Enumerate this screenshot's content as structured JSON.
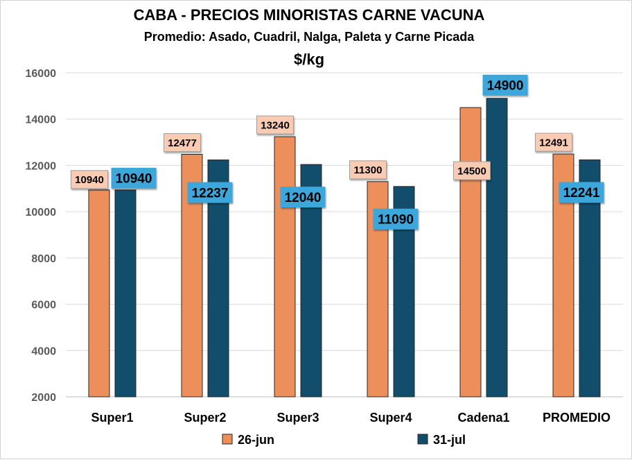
{
  "chart_data": {
    "type": "bar",
    "title": "CABA -  PRECIOS MINORISTAS CARNE VACUNA",
    "subtitle": "Promedio: Asado, Cuadril, Nalga, Paleta y Carne Picada",
    "unit_label": "$/kg",
    "xlabel": "",
    "ylabel": "",
    "ylim": [
      2000,
      16000
    ],
    "yticks": [
      2000,
      4000,
      6000,
      8000,
      10000,
      12000,
      14000,
      16000
    ],
    "grid": true,
    "legend_position": "bottom",
    "categories": [
      "Super1",
      "Super2",
      "Super3",
      "Super4",
      "Cadena1",
      "PROMEDIO"
    ],
    "series": [
      {
        "name": "26-jun",
        "color": "#ED8F5B",
        "label_bg": "#F9CBB2",
        "values": [
          10940,
          12477,
          13240,
          11300,
          14500,
          12491
        ]
      },
      {
        "name": "31-jul",
        "color": "#124E6B",
        "label_bg": "#3DA7DC",
        "values": [
          10940,
          12237,
          12040,
          11090,
          14900,
          12241
        ]
      }
    ]
  }
}
